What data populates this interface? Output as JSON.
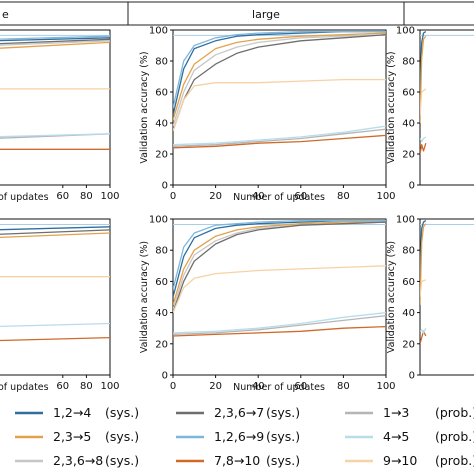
{
  "chart_data": [
    {
      "type": "line",
      "panel": "top-left (cropped)",
      "header": "e",
      "xlabel": "of updates",
      "ylabel": "",
      "xlim": [
        0,
        100
      ],
      "ylim": [
        0,
        100
      ],
      "xticks": [
        "60",
        "80",
        "100"
      ],
      "yticks": [],
      "series": [
        {
          "name": "1,2→4 (sys.)",
          "x": [
            0,
            100
          ],
          "y": [
            93,
            95
          ]
        },
        {
          "name": "2,3→5 (sys.)",
          "x": [
            0,
            100
          ],
          "y": [
            88,
            92
          ]
        },
        {
          "name": "2,3,6→8 (sys.)",
          "x": [
            0,
            100
          ],
          "y": [
            90,
            93
          ]
        },
        {
          "name": "2,3,6→7 (sys.)",
          "x": [
            0,
            100
          ],
          "y": [
            91,
            94
          ]
        },
        {
          "name": "1,2,6→9 (sys.)",
          "x": [
            0,
            100
          ],
          "y": [
            94,
            96
          ]
        },
        {
          "name": "7,8→10 (sys.)",
          "x": [
            0,
            100
          ],
          "y": [
            23,
            23
          ]
        },
        {
          "name": "1→3 (prob.)",
          "x": [
            0,
            100
          ],
          "y": [
            30,
            33
          ]
        },
        {
          "name": "4→5 (prob.)",
          "x": [
            0,
            100
          ],
          "y": [
            31,
            33
          ]
        },
        {
          "name": "9→10 (prob.)",
          "x": [
            0,
            100
          ],
          "y": [
            62,
            62
          ]
        }
      ]
    },
    {
      "type": "line",
      "panel": "top-middle",
      "header": "large",
      "xlabel": "Number of updates",
      "ylabel": "Validation accuracy (%)",
      "xlim": [
        0,
        100
      ],
      "ylim": [
        0,
        100
      ],
      "xticks": [
        "0",
        "20",
        "40",
        "60",
        "80",
        "100"
      ],
      "yticks": [
        "0",
        "20",
        "40",
        "60",
        "80",
        "100"
      ],
      "series": [
        {
          "name": "1,2→4 (sys.)",
          "x": [
            0,
            5,
            10,
            20,
            30,
            40,
            60,
            80,
            100
          ],
          "y": [
            45,
            75,
            88,
            93,
            96,
            97,
            98,
            99,
            99
          ]
        },
        {
          "name": "2,3→5 (sys.)",
          "x": [
            0,
            5,
            10,
            20,
            30,
            40,
            60,
            80,
            100
          ],
          "y": [
            42,
            65,
            78,
            88,
            92,
            94,
            96,
            97,
            98
          ]
        },
        {
          "name": "2,3,6→8 (sys.)",
          "x": [
            0,
            5,
            10,
            20,
            30,
            40,
            60,
            80,
            100
          ],
          "y": [
            38,
            60,
            74,
            84,
            89,
            92,
            95,
            96,
            97
          ]
        },
        {
          "name": "2,3,6→7 (sys.)",
          "x": [
            0,
            5,
            10,
            20,
            30,
            40,
            60,
            80,
            100
          ],
          "y": [
            35,
            55,
            68,
            78,
            85,
            89,
            93,
            95,
            97
          ]
        },
        {
          "name": "1,2,6→9 (sys.)",
          "x": [
            0,
            5,
            10,
            20,
            30,
            40,
            60,
            80,
            100
          ],
          "y": [
            50,
            80,
            90,
            95,
            97,
            98,
            99,
            99,
            99
          ]
        },
        {
          "name": "7,8→10 (sys.)",
          "x": [
            0,
            20,
            40,
            60,
            80,
            100
          ],
          "y": [
            24,
            25,
            27,
            28,
            30,
            32
          ]
        },
        {
          "name": "1→3 (prob.)",
          "x": [
            0,
            20,
            40,
            60,
            80,
            100
          ],
          "y": [
            25,
            26,
            28,
            30,
            33,
            36
          ]
        },
        {
          "name": "4→5 (prob.)",
          "x": [
            0,
            20,
            40,
            60,
            80,
            100
          ],
          "y": [
            26,
            27,
            29,
            31,
            34,
            38
          ]
        },
        {
          "name": "9→10 (prob.)",
          "x": [
            0,
            5,
            10,
            20,
            40,
            60,
            80,
            100
          ],
          "y": [
            35,
            55,
            64,
            66,
            66,
            67,
            68,
            68
          ]
        }
      ]
    },
    {
      "type": "line",
      "panel": "top-right (cropped)",
      "header": "",
      "xlabel": "",
      "ylabel": "Validation accuracy (%)",
      "xlim": [
        0,
        100
      ],
      "ylim": [
        0,
        100
      ],
      "xticks": [],
      "yticks": [
        "0",
        "20",
        "40",
        "60",
        "80",
        "100"
      ],
      "series": [
        {
          "name": "1,2→4 (sys.)",
          "x": [
            0,
            3,
            6,
            10
          ],
          "y": [
            60,
            92,
            98,
            99
          ]
        },
        {
          "name": "2,3→5 (sys.)",
          "x": [
            0,
            3,
            6,
            10
          ],
          "y": [
            40,
            82,
            94,
            96
          ]
        },
        {
          "name": "9→10 (prob.)",
          "x": [
            0,
            3,
            10
          ],
          "y": [
            45,
            60,
            62
          ]
        },
        {
          "name": "7,8→10 (sys.)",
          "x": [
            0,
            3,
            6,
            10
          ],
          "y": [
            20,
            26,
            22,
            27
          ]
        },
        {
          "name": "4→5 (prob.)",
          "x": [
            0,
            3,
            6,
            10
          ],
          "y": [
            30,
            28,
            30,
            31
          ]
        }
      ]
    },
    {
      "type": "line",
      "panel": "bottom-left (cropped)",
      "header": "",
      "xlabel": "of updates",
      "ylabel": "",
      "xlim": [
        0,
        100
      ],
      "ylim": [
        0,
        100
      ],
      "xticks": [
        "60",
        "80",
        "100"
      ],
      "yticks": [],
      "series": [
        {
          "name": "1,2→4 (sys.)",
          "x": [
            0,
            100
          ],
          "y": [
            93,
            95
          ]
        },
        {
          "name": "2,3→5 (sys.)",
          "x": [
            0,
            100
          ],
          "y": [
            88,
            91
          ]
        },
        {
          "name": "2,3,6→7 (sys.)",
          "x": [
            0,
            100
          ],
          "y": [
            90,
            93
          ]
        },
        {
          "name": "7,8→10 (sys.)",
          "x": [
            0,
            100
          ],
          "y": [
            22,
            24
          ]
        },
        {
          "name": "4→5 (prob.)",
          "x": [
            0,
            100
          ],
          "y": [
            31,
            33
          ]
        },
        {
          "name": "9→10 (prob.)",
          "x": [
            0,
            100
          ],
          "y": [
            63,
            63
          ]
        }
      ]
    },
    {
      "type": "line",
      "panel": "bottom-middle",
      "header": "",
      "xlabel": "Number of updates",
      "ylabel": "Validation accuracy (%)",
      "xlim": [
        0,
        100
      ],
      "ylim": [
        0,
        100
      ],
      "xticks": [
        "0",
        "20",
        "40",
        "60",
        "80",
        "100"
      ],
      "yticks": [
        "0",
        "20",
        "40",
        "60",
        "80",
        "100"
      ],
      "series": [
        {
          "name": "1,2→4 (sys.)",
          "x": [
            0,
            5,
            10,
            20,
            30,
            40,
            60,
            80,
            100
          ],
          "y": [
            50,
            76,
            88,
            94,
            96,
            97,
            98,
            99,
            99
          ]
        },
        {
          "name": "2,3→5 (sys.)",
          "x": [
            0,
            5,
            10,
            20,
            30,
            40,
            60,
            80,
            100
          ],
          "y": [
            45,
            68,
            80,
            89,
            93,
            95,
            97,
            98,
            98
          ]
        },
        {
          "name": "2,3,6→8 (sys.)",
          "x": [
            0,
            5,
            10,
            20,
            30,
            40,
            60,
            80,
            100
          ],
          "y": [
            42,
            64,
            77,
            86,
            91,
            94,
            96,
            97,
            98
          ]
        },
        {
          "name": "2,3,6→7 (sys.)",
          "x": [
            0,
            5,
            10,
            20,
            30,
            40,
            60,
            80,
            100
          ],
          "y": [
            40,
            60,
            73,
            84,
            90,
            93,
            96,
            97,
            98
          ]
        },
        {
          "name": "1,2,6→9 (sys.)",
          "x": [
            0,
            5,
            10,
            20,
            30,
            40,
            60,
            80,
            100
          ],
          "y": [
            55,
            82,
            91,
            96,
            97,
            98,
            99,
            99,
            99
          ]
        },
        {
          "name": "7,8→10 (sys.)",
          "x": [
            0,
            20,
            40,
            60,
            80,
            100
          ],
          "y": [
            25,
            26,
            27,
            28,
            30,
            31
          ]
        },
        {
          "name": "1→3 (prob.)",
          "x": [
            0,
            20,
            40,
            60,
            80,
            100
          ],
          "y": [
            26,
            27,
            29,
            32,
            35,
            38
          ]
        },
        {
          "name": "4→5 (prob.)",
          "x": [
            0,
            20,
            40,
            60,
            80,
            100
          ],
          "y": [
            27,
            28,
            30,
            33,
            37,
            40
          ]
        },
        {
          "name": "9→10 (prob.)",
          "x": [
            0,
            5,
            10,
            20,
            40,
            60,
            80,
            100
          ],
          "y": [
            40,
            56,
            62,
            65,
            67,
            68,
            69,
            70
          ]
        }
      ]
    },
    {
      "type": "line",
      "panel": "bottom-right (cropped)",
      "header": "",
      "xlabel": "",
      "ylabel": "Validation accuracy (%)",
      "xlim": [
        0,
        100
      ],
      "ylim": [
        0,
        100
      ],
      "xticks": [],
      "yticks": [
        "0",
        "20",
        "40",
        "60",
        "80",
        "100"
      ],
      "series": [
        {
          "name": "1,2→4 (sys.)",
          "x": [
            0,
            3,
            6,
            10
          ],
          "y": [
            65,
            94,
            98,
            99
          ]
        },
        {
          "name": "2,3→5 (sys.)",
          "x": [
            0,
            3,
            6,
            10
          ],
          "y": [
            45,
            85,
            95,
            97
          ]
        },
        {
          "name": "9→10 (prob.)",
          "x": [
            0,
            3,
            10
          ],
          "y": [
            50,
            60,
            61
          ]
        },
        {
          "name": "7,8→10 (sys.)",
          "x": [
            0,
            3,
            6,
            10
          ],
          "y": [
            20,
            24,
            28,
            25
          ]
        },
        {
          "name": "4→5 (prob.)",
          "x": [
            0,
            3,
            6,
            10
          ],
          "y": [
            28,
            29,
            27,
            30
          ]
        }
      ]
    }
  ],
  "legend": {
    "placement": "bottom",
    "items": [
      {
        "label": "1,2→4",
        "tag": "(sys.)",
        "color": "#2f6f9e"
      },
      {
        "label": "2,3,6→7",
        "tag": "(sys.)",
        "color": "#6e6e6e"
      },
      {
        "label": "1→3",
        "tag": "(prob.)",
        "color": "#b5b5b5"
      },
      {
        "label": "2,3→5",
        "tag": "(sys.)",
        "color": "#e3a24a"
      },
      {
        "label": "1,2,6→9",
        "tag": "(sys.)",
        "color": "#7fb6dc"
      },
      {
        "label": "4→5",
        "tag": "(prob.)",
        "color": "#b8dcea"
      },
      {
        "label": "2,3,6→8",
        "tag": "(sys.)",
        "color": "#c7c7c7"
      },
      {
        "label": "7,8→10",
        "tag": "(sys.)",
        "color": "#d06a28"
      },
      {
        "label": "9→10",
        "tag": "(prob.)",
        "color": "#f6d2a4"
      }
    ]
  },
  "colors": {
    "1,2→4 (sys.)": "#2f6f9e",
    "2,3→5 (sys.)": "#e3a24a",
    "2,3,6→8 (sys.)": "#c7c7c7",
    "2,3,6→7 (sys.)": "#6e6e6e",
    "1,2,6→9 (sys.)": "#7fb6dc",
    "7,8→10 (sys.)": "#d06a28",
    "1→3 (prob.)": "#b5b5b5",
    "4→5 (prob.)": "#b8dcea",
    "9→10 (prob.)": "#f6d2a4",
    "reference_line": "#a9cfe8"
  }
}
